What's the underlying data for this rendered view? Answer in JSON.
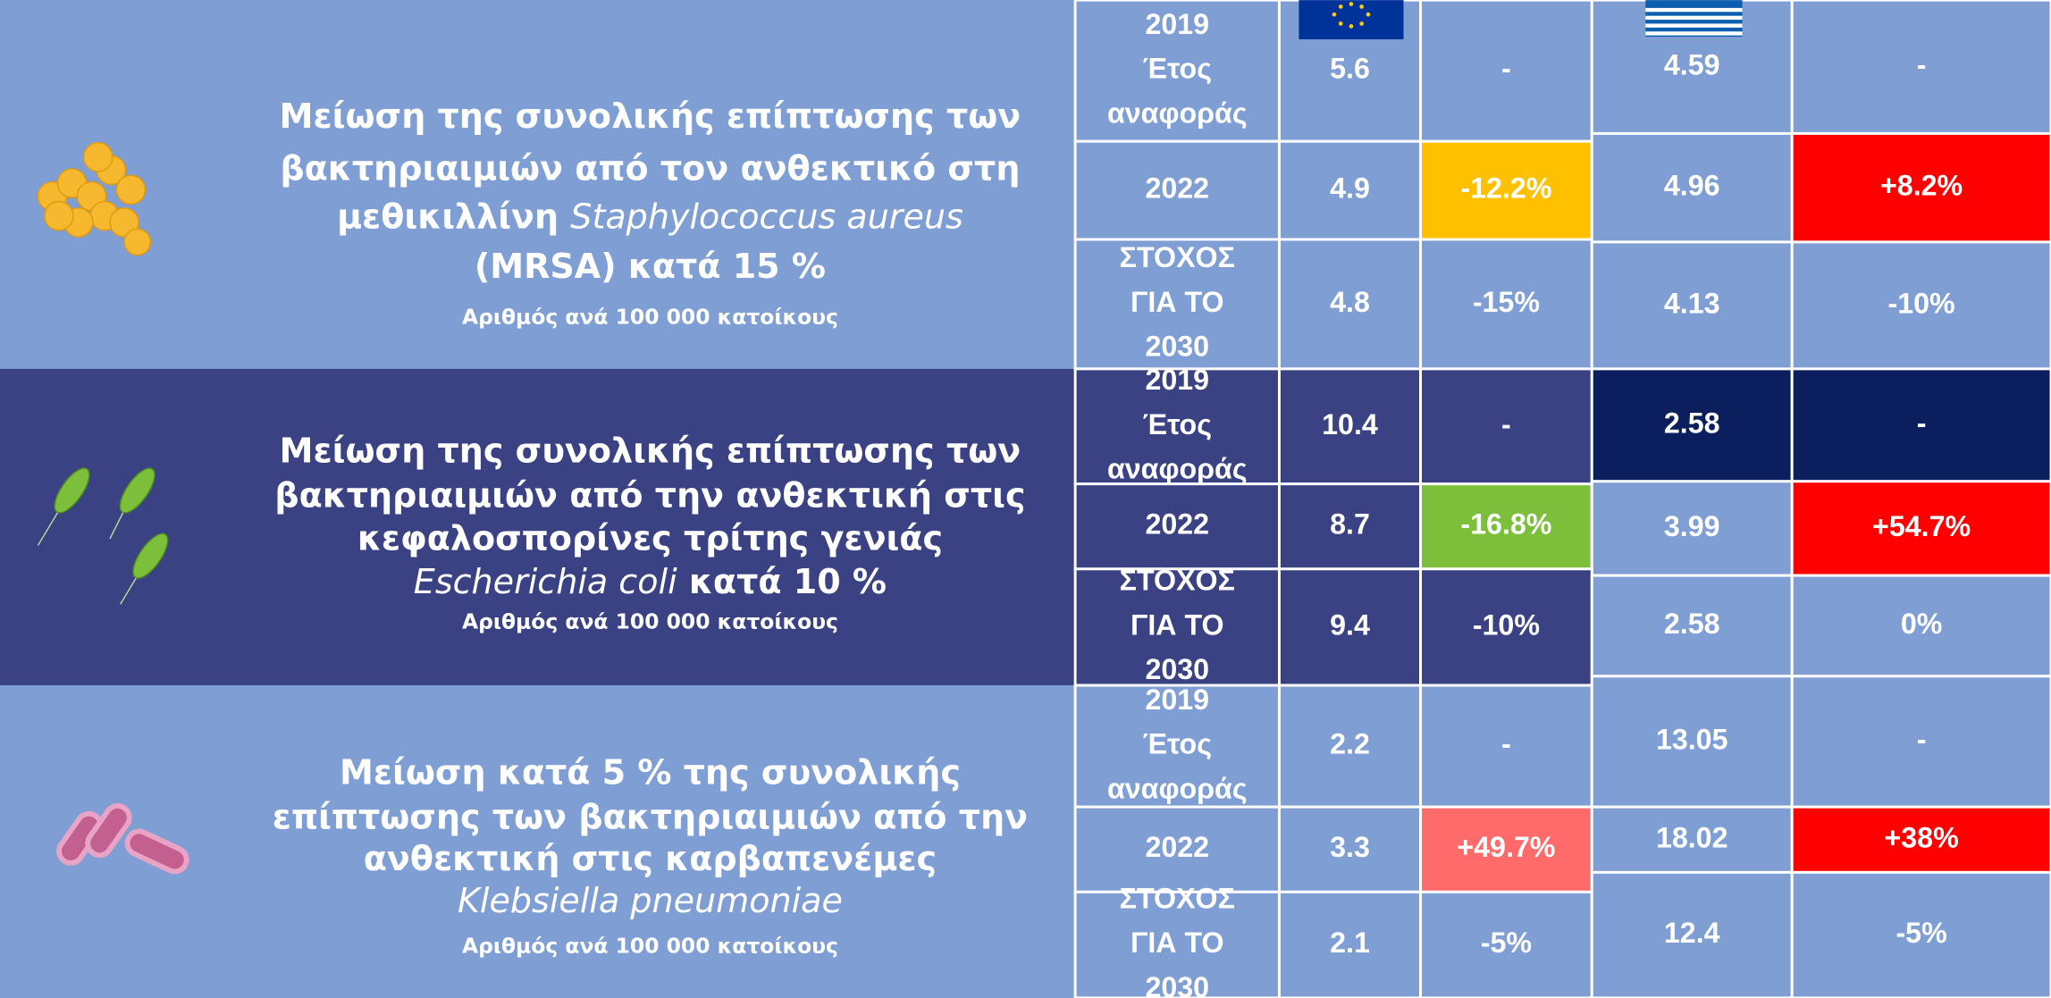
{
  "sections": [
    {
      "bg": "#7f9fd4",
      "gr_bg": "#7f9fd4",
      "title_lines": [
        [
          {
            "text": "Μείωση της συνολικής επίπτωσης των"
          }
        ],
        [
          {
            "text": "βακτηριαιμιών από τον ανθεκτικό στη"
          }
        ],
        [
          {
            "text": "μεθικιλλίνη "
          },
          {
            "text": "Staphylococcus aureus",
            "italic": true
          }
        ],
        [
          {
            "text": "(MRSA) κατά 15 %"
          }
        ]
      ],
      "subtitle": "Αριθμός ανά 100 000 κατοίκους",
      "rows": [
        {
          "label": [
            "2019",
            "Έτος",
            "αναφοράς"
          ],
          "eu": "5.6",
          "eu_change": "-",
          "gr": "4.59",
          "gr_change": "-"
        },
        {
          "label": [
            "2022"
          ],
          "eu": "4.9",
          "eu_change": "-12.2%",
          "eu_change_bg": "#ffc000",
          "eu_change_fg": "#2f4a8c",
          "gr": "4.96",
          "gr_change": "+8.2%",
          "gr_change_bg": "#ff0000"
        },
        {
          "label": [
            "ΣΤΟΧΟΣ",
            "ΓΙΑ ΤΟ",
            "2030"
          ],
          "eu": "4.8",
          "eu_change": "-15%",
          "gr": "4.13",
          "gr_change": "-10%"
        }
      ]
    },
    {
      "bg": "#3a4283",
      "gr_bg": "#7f9fd4",
      "title_lines": [
        [
          {
            "text": "Μείωση της συνολικής επίπτωσης των"
          }
        ],
        [
          {
            "text": "βακτηριαιμιών από την ανθεκτική στις"
          }
        ],
        [
          {
            "text": "κεφαλοσπορίνες τρίτης γενιάς"
          }
        ],
        [
          {
            "text": "Escherichia coli",
            "italic": true
          },
          {
            "text": " κατά 10 %"
          }
        ]
      ],
      "subtitle": "Αριθμός ανά 100 000 κατοίκους",
      "rows": [
        {
          "label": [
            "2019",
            "Έτος",
            "αναφοράς"
          ],
          "eu": "10.4",
          "eu_change": "-",
          "gr": "2.58",
          "gr_bg": "#0b1f5e",
          "gr_change": "-",
          "gr_change_bg": "#0b1f5e"
        },
        {
          "label": [
            "2022"
          ],
          "eu": "8.7",
          "eu_change": "-16.8%",
          "eu_change_bg": "#7cbf3a",
          "gr": "3.99",
          "gr_change": "+54.7%",
          "gr_change_bg": "#ff0000"
        },
        {
          "label": [
            "ΣΤΟΧΟΣ",
            "ΓΙΑ ΤΟ",
            "2030"
          ],
          "eu": "9.4",
          "eu_change": "-10%",
          "gr": "2.58",
          "gr_change": "0%"
        }
      ]
    },
    {
      "bg": "#7f9fd4",
      "gr_bg": "#7f9fd4",
      "title_lines": [
        [
          {
            "text": "Μείωση κατά 5 % της συνολικής"
          }
        ],
        [
          {
            "text": "επίπτωσης των βακτηριαιμιών από την"
          }
        ],
        [
          {
            "text": "ανθεκτική στις καρβαπενέμες"
          }
        ],
        [
          {
            "text": "Klebsiella pneumoniae",
            "italic": true
          }
        ]
      ],
      "subtitle": "Αριθμός ανά 100 000 κατοίκους",
      "rows": [
        {
          "label": [
            "2019",
            "Έτος",
            "αναφοράς"
          ],
          "eu": "2.2",
          "eu_change": "-",
          "gr": "13.05",
          "gr_change": "-"
        },
        {
          "label": [
            "2022"
          ],
          "eu": "3.3",
          "eu_change": "+49.7%",
          "eu_change_bg": "#ff6b6b",
          "gr": "18.02",
          "gr_change": "+38%",
          "gr_change_bg": "#ff0000"
        },
        {
          "label": [
            "ΣΤΟΧΟΣ",
            "ΓΙΑ ΤΟ",
            "2030"
          ],
          "eu": "2.1",
          "eu_change": "-5%",
          "gr": "12.4",
          "gr_change": "-5%"
        }
      ]
    }
  ]
}
